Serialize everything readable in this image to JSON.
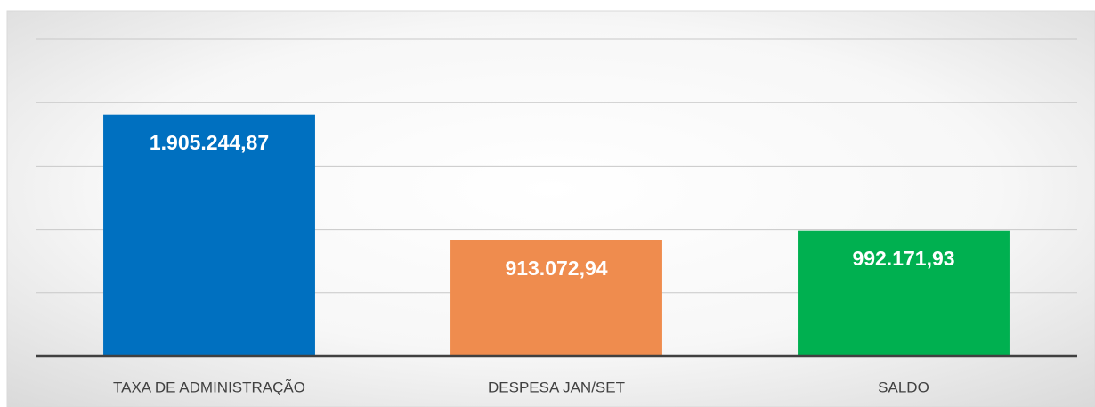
{
  "chart_data": {
    "type": "bar",
    "categories": [
      "TAXA DE ADMINISTRAÇÃO",
      "DESPESA JAN/SET",
      "SALDO"
    ],
    "values": [
      1905244.87,
      913072.94,
      992171.93
    ],
    "value_labels": [
      "1.905.244,87",
      "913.072,94",
      "992.171,93"
    ],
    "colors": [
      "#0070c0",
      "#ef8c4e",
      "#00b050"
    ],
    "ylim": [
      0,
      2500000
    ],
    "yticks": [
      0,
      500000,
      1000000,
      1500000,
      2000000,
      2500000
    ],
    "grid": true
  }
}
